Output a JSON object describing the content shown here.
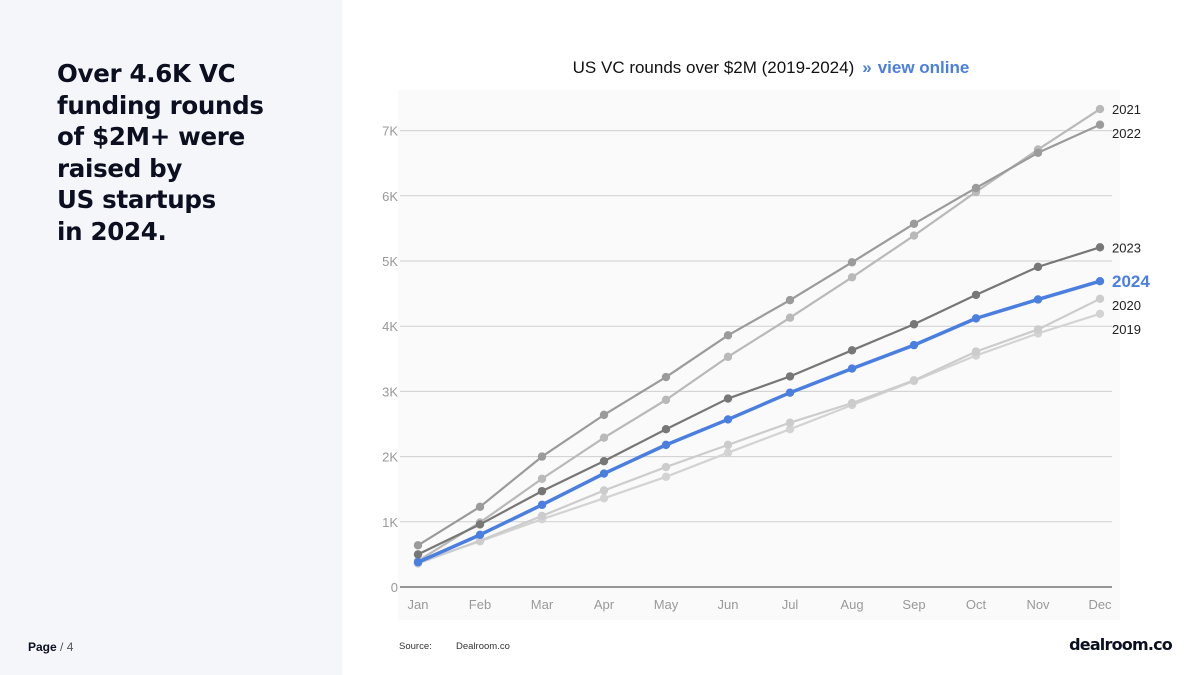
{
  "headline": "Over 4.6K VC\nfunding rounds\nof $2M+ were\nraised by\nUS startups\nin 2024.",
  "page": {
    "label": "Page",
    "number": "/ 4"
  },
  "chart_title": {
    "text": "US VC rounds over $2M (2019-2024)",
    "link_prefix": "»",
    "link_text": "view online"
  },
  "source": {
    "label": "Source:",
    "value": "Dealroom.co"
  },
  "brand": "dealroom.co",
  "colors": {
    "highlight": "#4a7fe0",
    "panel": "#f4f6fa"
  },
  "chart_data": {
    "type": "line",
    "title": "US VC rounds over $2M (2019-2024)",
    "categories": [
      "Jan",
      "Feb",
      "Mar",
      "Apr",
      "May",
      "Jun",
      "Jul",
      "Aug",
      "Sep",
      "Oct",
      "Nov",
      "Dec"
    ],
    "ylim": [
      0,
      7500
    ],
    "yticks": [
      0,
      1000,
      2000,
      3000,
      4000,
      5000,
      6000,
      7000
    ],
    "ytick_labels": [
      "0",
      "1K",
      "2K",
      "3K",
      "4K",
      "5K",
      "6K",
      "7K"
    ],
    "grid": true,
    "series": [
      {
        "name": "2019",
        "color": "#d3d3d3",
        "values": [
          380,
          700,
          1040,
          1360,
          1690,
          2060,
          2420,
          2790,
          3160,
          3550,
          3890,
          4190
        ]
      },
      {
        "name": "2020",
        "color": "#cccccc",
        "values": [
          360,
          710,
          1090,
          1480,
          1840,
          2180,
          2520,
          2820,
          3170,
          3610,
          3950,
          4420
        ]
      },
      {
        "name": "2021",
        "color": "#b9b9b9",
        "values": [
          400,
          990,
          1660,
          2290,
          2870,
          3530,
          4130,
          4750,
          5390,
          6060,
          6710,
          7330
        ]
      },
      {
        "name": "2022",
        "color": "#9b9b9b",
        "values": [
          640,
          1230,
          2000,
          2640,
          3220,
          3860,
          4400,
          4980,
          5570,
          6120,
          6660,
          7090
        ]
      },
      {
        "name": "2023",
        "color": "#777777",
        "values": [
          500,
          960,
          1470,
          1930,
          2420,
          2890,
          3230,
          3630,
          4030,
          4480,
          4910,
          5210
        ]
      },
      {
        "name": "2024",
        "color": "#4a7fe0",
        "highlight": true,
        "values": [
          380,
          800,
          1260,
          1740,
          2180,
          2570,
          2980,
          3350,
          3710,
          4120,
          4410,
          4690
        ]
      }
    ]
  }
}
